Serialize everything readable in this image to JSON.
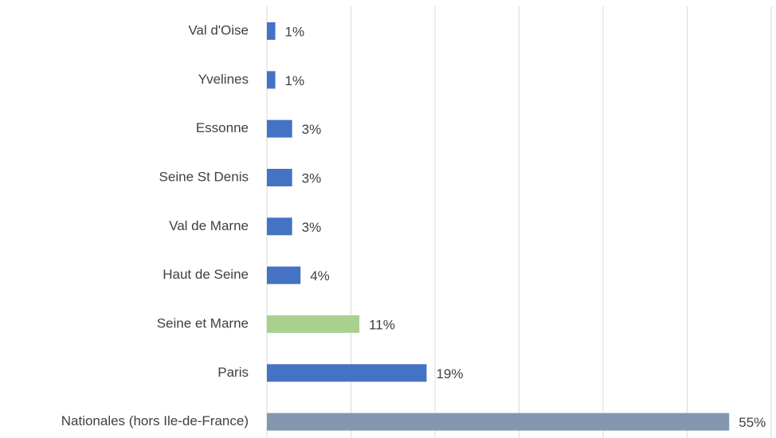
{
  "chart_data": {
    "type": "bar",
    "orientation": "horizontal",
    "categories": [
      "Val d'Oise",
      "Yvelines",
      "Essonne",
      "Seine St Denis",
      "Val de Marne",
      "Haut de Seine",
      "Seine et Marne",
      "Paris",
      "Nationales (hors Ile-de-France)"
    ],
    "values": [
      1,
      1,
      3,
      3,
      3,
      4,
      11,
      19,
      55
    ],
    "value_labels": [
      "1%",
      "1%",
      "3%",
      "3%",
      "3%",
      "4%",
      "11%",
      "19%",
      "55%"
    ],
    "colors": [
      "#4472c4",
      "#4472c4",
      "#4472c4",
      "#4472c4",
      "#4472c4",
      "#4472c4",
      "#a9d18e",
      "#4472c4",
      "#8497b0"
    ],
    "xlim": [
      0,
      60
    ],
    "xticks": [
      0,
      10,
      20,
      30,
      40,
      50,
      60
    ],
    "grid": true
  }
}
